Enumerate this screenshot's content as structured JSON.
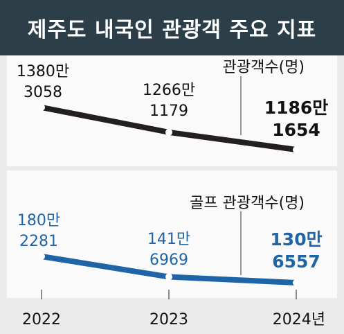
{
  "title": "제주도 내국인 관광객 주요 지표",
  "chart_data": [
    {
      "type": "line",
      "x": [
        "2022",
        "2023",
        "2024년"
      ],
      "series": [
        {
          "name": "관광객수(명)",
          "values": [
            13803058,
            12661179,
            11861654
          ],
          "labels": [
            [
              "1380만",
              "3058"
            ],
            [
              "1266만",
              "1179"
            ],
            [
              "1186만",
              "1654"
            ]
          ],
          "color": "#231f20"
        }
      ]
    },
    {
      "type": "line",
      "x": [
        "2022",
        "2023",
        "2024년"
      ],
      "series": [
        {
          "name": "골프 관광객수(명)",
          "values": [
            1802281,
            1416969,
            1306557
          ],
          "labels": [
            [
              "180만",
              "2281"
            ],
            [
              "141만",
              "6969"
            ],
            [
              "130만",
              "6557"
            ]
          ],
          "color": "#1f64a7"
        }
      ]
    }
  ],
  "colors": {
    "title_bg": "#2c3e48",
    "panel_bg": "#fafafa",
    "page_bg": "#ebebeb"
  }
}
